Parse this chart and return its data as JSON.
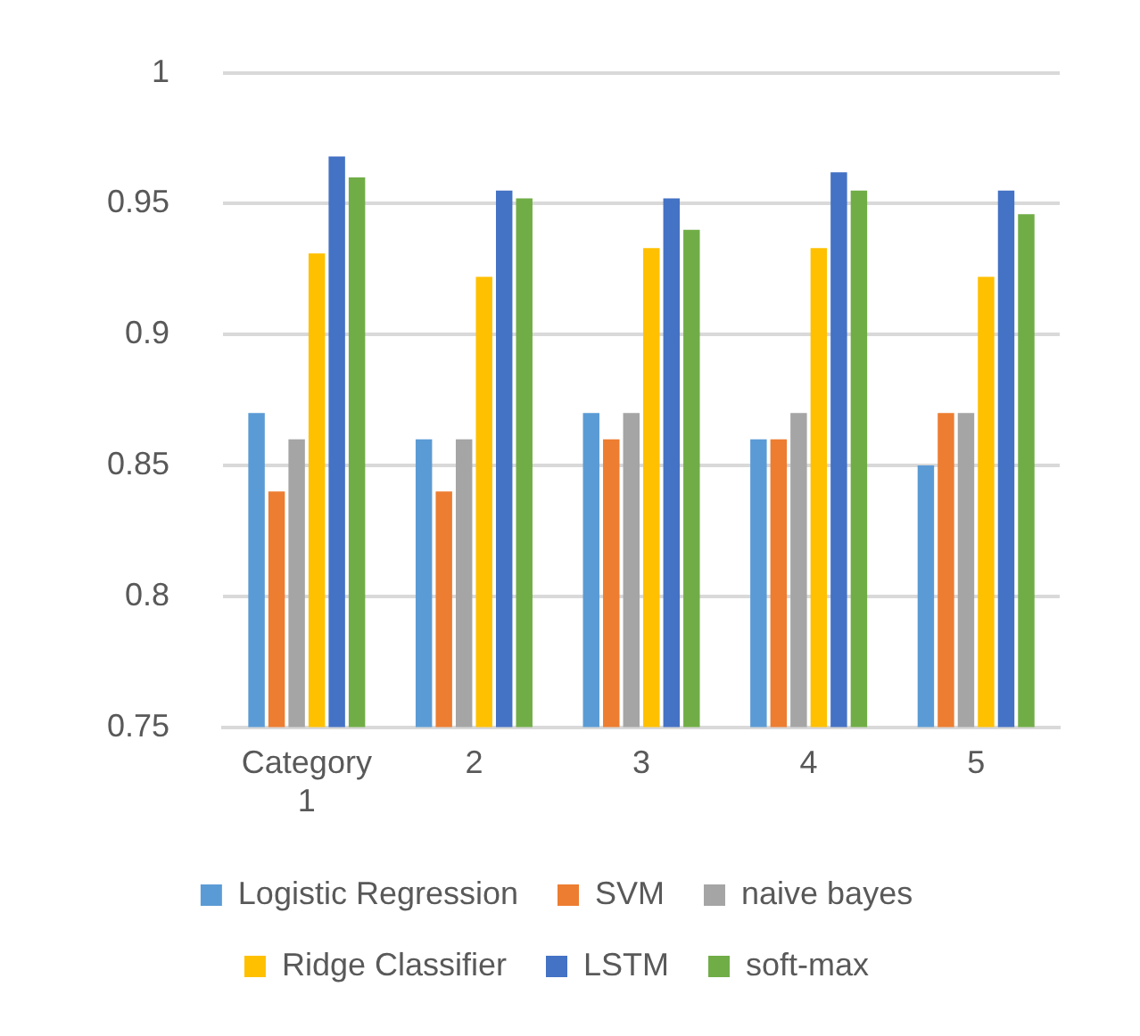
{
  "chart_data": {
    "type": "bar",
    "categories": [
      "Category 1",
      "2",
      "3",
      "4",
      "5"
    ],
    "series": [
      {
        "name": "Logistic Regression",
        "color": "#5b9bd5",
        "values": [
          0.87,
          0.86,
          0.87,
          0.86,
          0.85
        ]
      },
      {
        "name": "SVM",
        "color": "#ed7d31",
        "values": [
          0.84,
          0.84,
          0.86,
          0.86,
          0.87
        ]
      },
      {
        "name": "naive bayes",
        "color": "#a5a5a5",
        "values": [
          0.86,
          0.86,
          0.87,
          0.87,
          0.87
        ]
      },
      {
        "name": "Ridge Classifier",
        "color": "#ffc000",
        "values": [
          0.931,
          0.922,
          0.933,
          0.933,
          0.922
        ]
      },
      {
        "name": "LSTM",
        "color": "#4472c4",
        "values": [
          0.968,
          0.955,
          0.952,
          0.962,
          0.955
        ]
      },
      {
        "name": "soft-max",
        "color": "#70ad47",
        "values": [
          0.96,
          0.952,
          0.94,
          0.955,
          0.946
        ]
      }
    ],
    "ylim": [
      0.75,
      1
    ],
    "yticks": [
      0.75,
      0.8,
      0.85,
      0.9,
      0.95,
      1
    ],
    "grid": "y",
    "legend": "bottom"
  }
}
